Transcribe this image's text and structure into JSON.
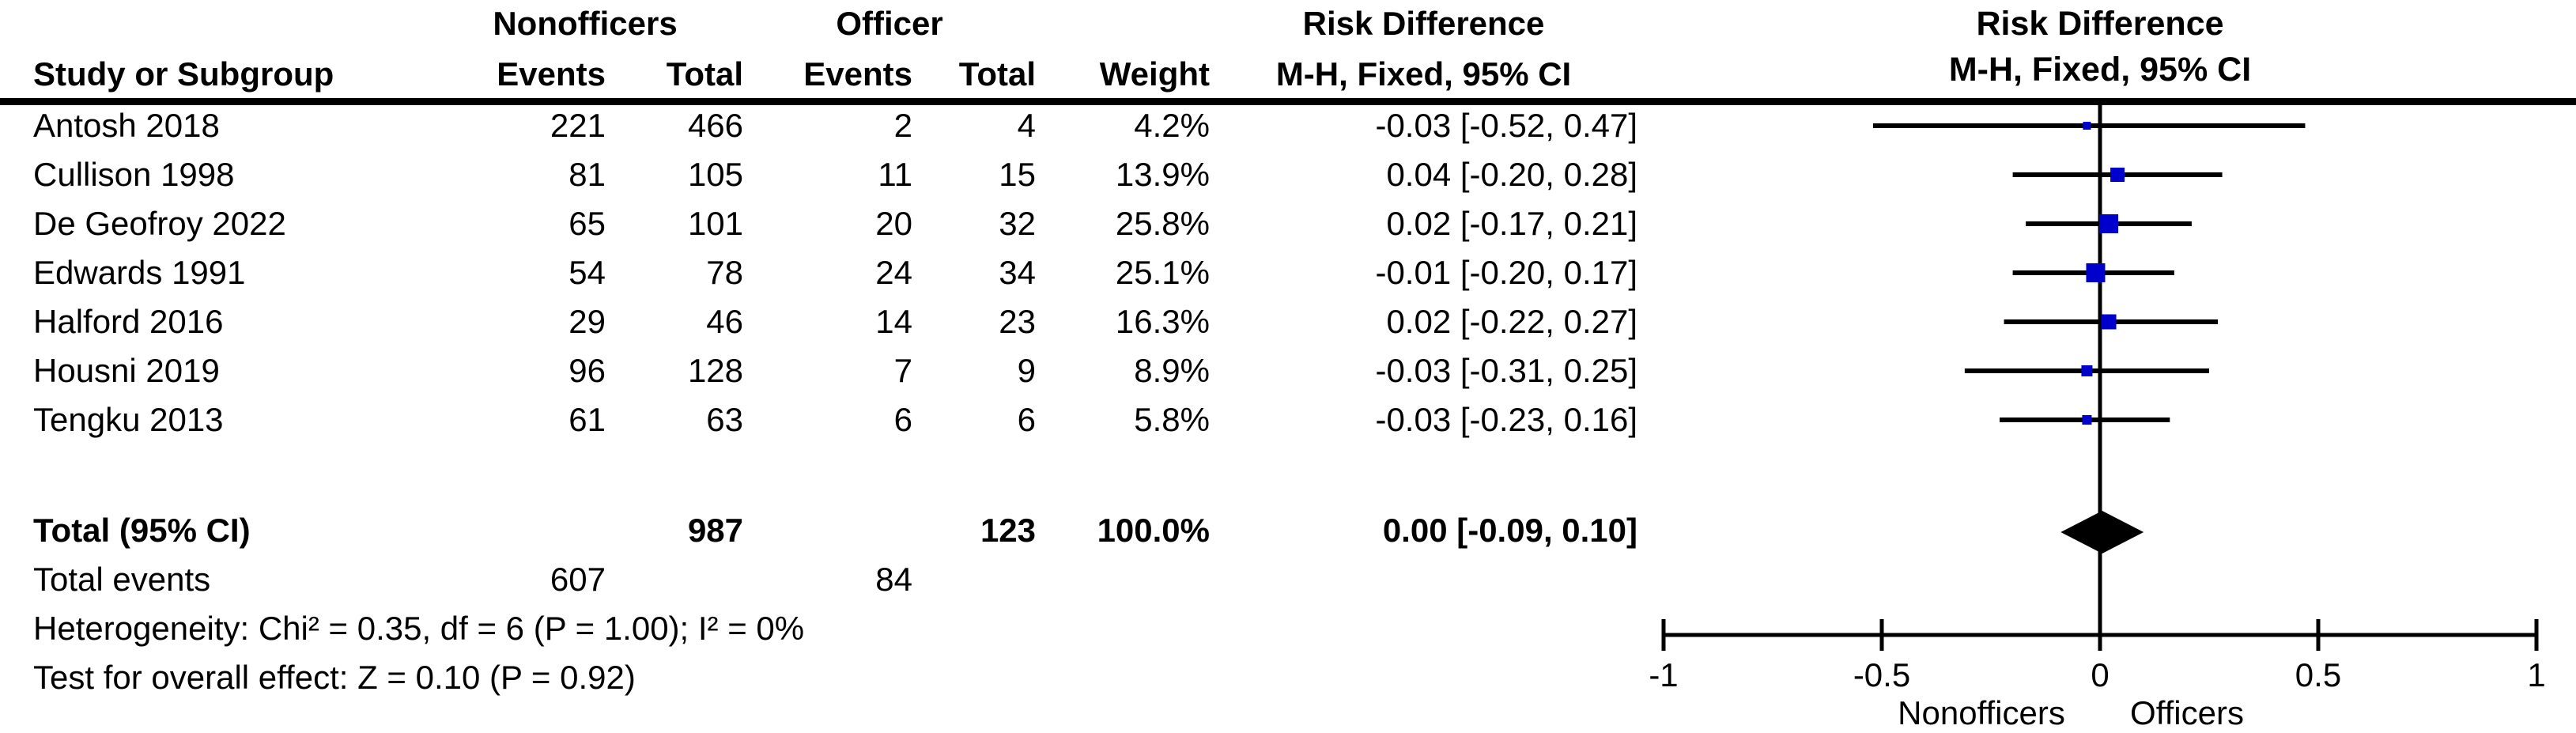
{
  "figure": {
    "header": {
      "group_nonofficers": "Nonofficers",
      "group_officer": "Officer",
      "risk_difference": "Risk Difference",
      "col_study": "Study or Subgroup",
      "col_events": "Events",
      "col_total": "Total",
      "col_weight": "Weight",
      "col_ci": "M-H, Fixed, 95% CI"
    },
    "colors": {
      "marker_blue": "#0000CC",
      "line_black": "#000000"
    }
  },
  "chart_data": {
    "type": "forest",
    "effect_measure": "Risk Difference",
    "method": "M-H, Fixed, 95% CI",
    "axis": {
      "min": -1,
      "max": 1,
      "ticks": [
        -1,
        -0.5,
        0,
        0.5,
        1
      ],
      "tick_labels": [
        "-1",
        "-0.5",
        "0",
        "0.5",
        "1"
      ],
      "favours_left": "Nonofficers",
      "favours_right": "Officers"
    },
    "studies": [
      {
        "name": "Antosh 2018",
        "nonofficers_events": 221,
        "nonofficers_total": 466,
        "officer_events": 2,
        "officer_total": 4,
        "weight": "4.2%",
        "weight_value": 4.2,
        "est": -0.03,
        "lo": -0.52,
        "hi": 0.47,
        "ci_text": "-0.03 [-0.52, 0.47]"
      },
      {
        "name": "Cullison 1998",
        "nonofficers_events": 81,
        "nonofficers_total": 105,
        "officer_events": 11,
        "officer_total": 15,
        "weight": "13.9%",
        "weight_value": 13.9,
        "est": 0.04,
        "lo": -0.2,
        "hi": 0.28,
        "ci_text": "0.04 [-0.20, 0.28]"
      },
      {
        "name": "De Geofroy 2022",
        "nonofficers_events": 65,
        "nonofficers_total": 101,
        "officer_events": 20,
        "officer_total": 32,
        "weight": "25.8%",
        "weight_value": 25.8,
        "est": 0.02,
        "lo": -0.17,
        "hi": 0.21,
        "ci_text": "0.02 [-0.17, 0.21]"
      },
      {
        "name": "Edwards 1991",
        "nonofficers_events": 54,
        "nonofficers_total": 78,
        "officer_events": 24,
        "officer_total": 34,
        "weight": "25.1%",
        "weight_value": 25.1,
        "est": -0.01,
        "lo": -0.2,
        "hi": 0.17,
        "ci_text": "-0.01 [-0.20, 0.17]"
      },
      {
        "name": "Halford 2016",
        "nonofficers_events": 29,
        "nonofficers_total": 46,
        "officer_events": 14,
        "officer_total": 23,
        "weight": "16.3%",
        "weight_value": 16.3,
        "est": 0.02,
        "lo": -0.22,
        "hi": 0.27,
        "ci_text": "0.02 [-0.22, 0.27]"
      },
      {
        "name": "Housni 2019",
        "nonofficers_events": 96,
        "nonofficers_total": 128,
        "officer_events": 7,
        "officer_total": 9,
        "weight": "8.9%",
        "weight_value": 8.9,
        "est": -0.03,
        "lo": -0.31,
        "hi": 0.25,
        "ci_text": "-0.03 [-0.31, 0.25]"
      },
      {
        "name": "Tengku 2013",
        "nonofficers_events": 61,
        "nonofficers_total": 63,
        "officer_events": 6,
        "officer_total": 6,
        "weight": "5.8%",
        "weight_value": 5.8,
        "est": -0.03,
        "lo": -0.23,
        "hi": 0.16,
        "ci_text": "-0.03 [-0.23, 0.16]"
      }
    ],
    "total": {
      "label": "Total (95% CI)",
      "nonofficers_total": 987,
      "officer_total": 123,
      "weight": "100.0%",
      "est": 0.0,
      "lo": -0.09,
      "hi": 0.1,
      "ci_text": "0.00 [-0.09, 0.10]"
    },
    "total_events": {
      "label": "Total events",
      "nonofficers_events": 607,
      "officer_events": 84
    },
    "heterogeneity": "Heterogeneity: Chi² = 0.35, df = 6 (P = 1.00); I² = 0%",
    "overall_effect": "Test for overall effect: Z = 0.10 (P = 0.92)"
  }
}
